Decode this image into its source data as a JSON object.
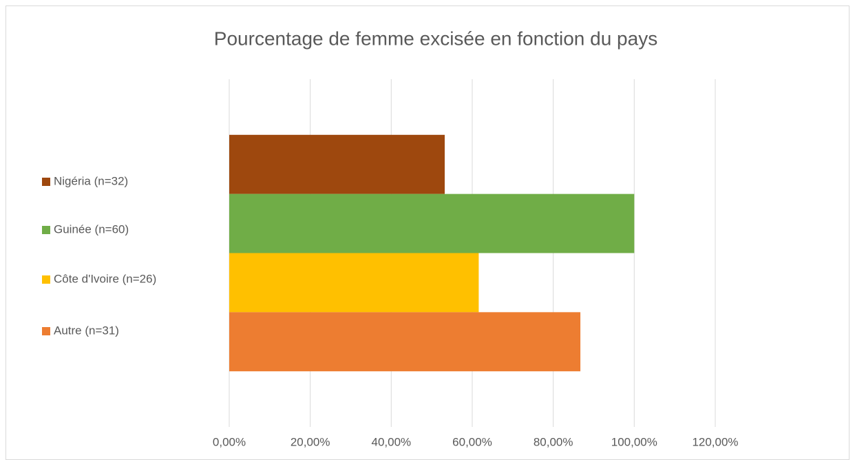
{
  "chart_data": {
    "type": "bar",
    "orientation": "horizontal",
    "title": "Pourcentage de femme excisée en fonction du pays",
    "series": [
      {
        "name": "Nigéria (n=32)",
        "color": "#9e480e",
        "values": [
          53.2
        ]
      },
      {
        "name": "Guinée (n=60)",
        "color": "#70ad47",
        "values": [
          100
        ]
      },
      {
        "name": "Côte d'Ivoire (n=26)",
        "color": "#ffc000",
        "values": [
          61.6
        ]
      },
      {
        "name": "Autre (n=31)",
        "color": "#ed7d31",
        "values": [
          86.7
        ]
      }
    ],
    "xlim": [
      0,
      120
    ],
    "xticks": [
      {
        "value": 0,
        "label": "0,00%"
      },
      {
        "value": 20,
        "label": "20,00%"
      },
      {
        "value": 40,
        "label": "40,00%"
      },
      {
        "value": 60,
        "label": "60,00%"
      },
      {
        "value": 80,
        "label": "80,00%"
      },
      {
        "value": 100,
        "label": "100,00%"
      },
      {
        "value": 120,
        "label": "120,00%"
      }
    ],
    "grid": true,
    "legend": "left"
  }
}
